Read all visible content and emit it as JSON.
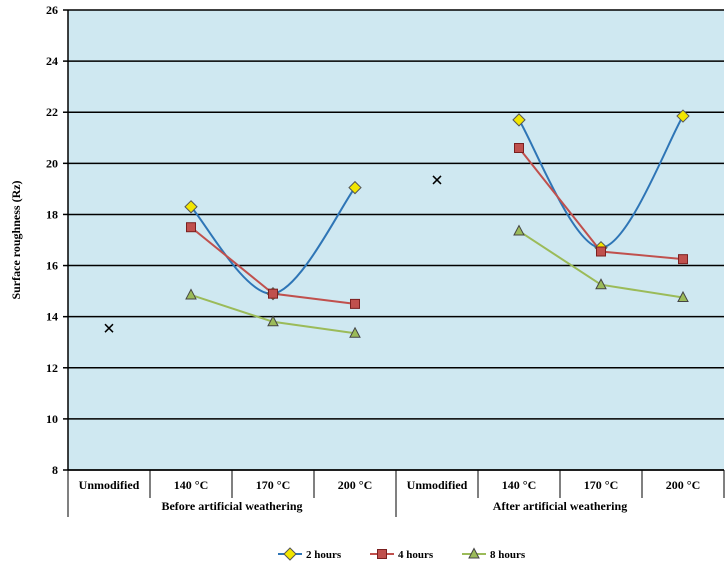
{
  "chart_data": {
    "type": "line",
    "ylabel": "Surface roughness (Rz)",
    "ylim": [
      8,
      26
    ],
    "yticks": [
      8,
      10,
      12,
      14,
      16,
      18,
      20,
      22,
      24,
      26
    ],
    "grid": "horizontal",
    "plot_background": "#cfe8f1",
    "categories": [
      "Unmodified",
      "140 °C",
      "170 °C",
      "200 °C",
      "Unmodified",
      "140 °C",
      "170 °C",
      "200 °C"
    ],
    "groups": [
      {
        "label": "Before artificial weathering",
        "span": [
          0,
          3
        ]
      },
      {
        "label": "After artificial weathering",
        "span": [
          4,
          7
        ]
      }
    ],
    "unmodified": {
      "marker": "x",
      "color": "#000000",
      "values": [
        13.55,
        19.35
      ],
      "category_index": [
        0,
        4
      ]
    },
    "series": [
      {
        "name": "2 hours",
        "color": "#2e75b6",
        "marker": "diamond",
        "marker_fill": "#f2e600",
        "smooth": true,
        "segments": [
          [
            null,
            18.3,
            14.9,
            19.05
          ],
          [
            null,
            21.7,
            16.7,
            21.85
          ]
        ]
      },
      {
        "name": "4 hours",
        "color": "#c0504d",
        "marker": "square",
        "marker_fill": "#c0504d",
        "smooth": false,
        "segments": [
          [
            null,
            17.5,
            14.9,
            14.5
          ],
          [
            null,
            20.6,
            16.55,
            16.25
          ]
        ]
      },
      {
        "name": "8 hours",
        "color": "#9bbb59",
        "marker": "triangle",
        "marker_fill": "#9bbb59",
        "smooth": false,
        "segments": [
          [
            null,
            14.85,
            13.8,
            13.35
          ],
          [
            null,
            17.35,
            15.25,
            14.75
          ]
        ]
      }
    ],
    "legend_position": "bottom"
  }
}
